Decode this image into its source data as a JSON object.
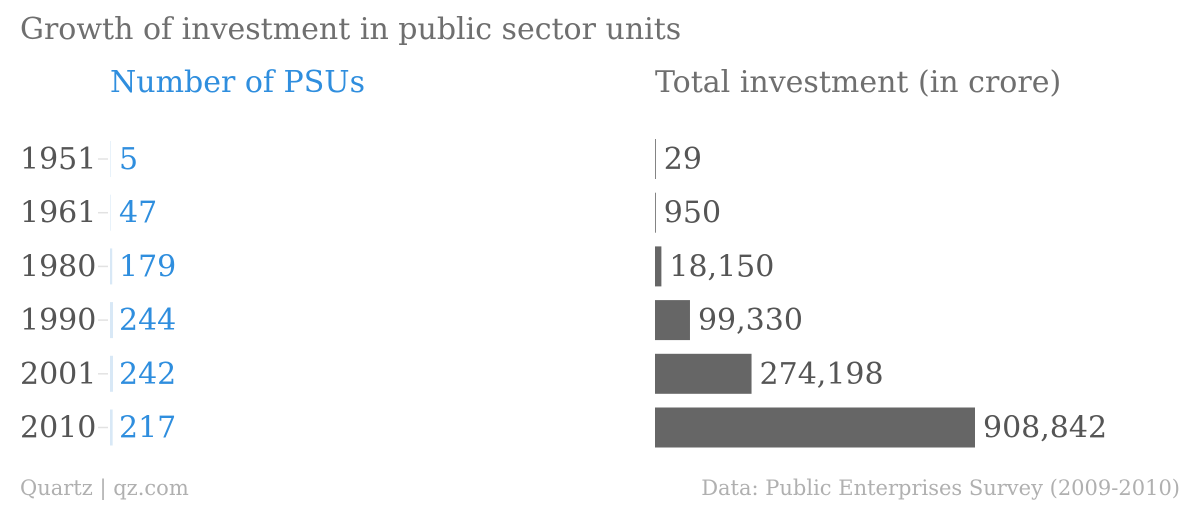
{
  "chart_data": {
    "type": "bar",
    "title": "Growth of investment in public sector units",
    "categories": [
      "1951",
      "1961",
      "1980",
      "1990",
      "2001",
      "2010"
    ],
    "series": [
      {
        "name": "Number of PSUs",
        "values": [
          5,
          47,
          179,
          244,
          242,
          217
        ],
        "labels": [
          "5",
          "47",
          "179",
          "244",
          "242",
          "217"
        ],
        "color": "#2f8ede"
      },
      {
        "name": "Total investment (in crore)",
        "values": [
          29,
          950,
          18150,
          99330,
          274198,
          908842
        ],
        "labels": [
          "29",
          "950",
          "18,150",
          "99,330",
          "274,198",
          "908,842"
        ],
        "color": "#666666"
      }
    ],
    "ylim_psus": [
      0,
      244
    ],
    "ylim_investment": [
      0,
      908842
    ],
    "grid": false,
    "legend": "none"
  },
  "footer": {
    "source_left": "Quartz | qz.com",
    "source_right": "Data: Public Enterprises Survey (2009-2010)"
  },
  "colors": {
    "title": "#6f6f6f",
    "category_label": "#555555",
    "psu": "#2f8ede",
    "investment": "#666666",
    "footer": "#b0b0b0"
  }
}
